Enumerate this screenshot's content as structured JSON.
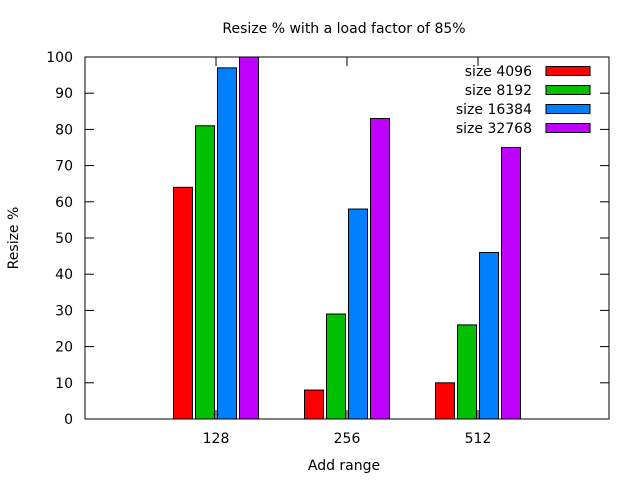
{
  "chart_data": {
    "type": "bar",
    "title": "Resize % with a load factor of 85%",
    "xlabel": "Add range",
    "ylabel": "Resize %",
    "categories": [
      "128",
      "256",
      "512"
    ],
    "ylim": [
      0,
      100
    ],
    "yticks": [
      0,
      10,
      20,
      30,
      40,
      50,
      60,
      70,
      80,
      90,
      100
    ],
    "grid": false,
    "legend_position": "top-right",
    "series": [
      {
        "name": "size 4096",
        "color": "#ff0000",
        "values": [
          64,
          8,
          10
        ]
      },
      {
        "name": "size 8192",
        "color": "#00c000",
        "values": [
          81,
          29,
          26
        ]
      },
      {
        "name": "size 16384",
        "color": "#0080ff",
        "values": [
          97,
          58,
          46
        ]
      },
      {
        "name": "size 32768",
        "color": "#c000ff",
        "values": [
          100,
          83,
          75
        ]
      }
    ]
  }
}
